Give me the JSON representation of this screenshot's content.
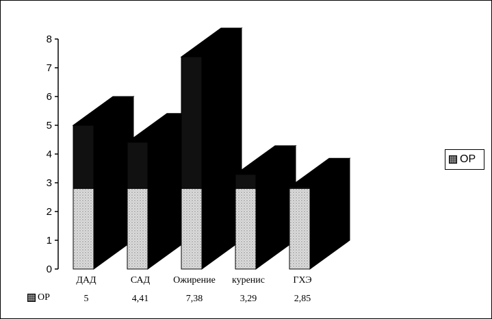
{
  "chart_data": {
    "type": "bar",
    "categories": [
      "ДАД",
      "САД",
      "Ожирение",
      "куренис",
      "ГХЭ"
    ],
    "series": [
      {
        "name": "ОР",
        "values": [
          5,
          4.41,
          7.38,
          3.29,
          2.85
        ]
      }
    ],
    "value_labels": [
      "5",
      "4,41",
      "7,38",
      "3,29",
      "2,85"
    ],
    "y_ticks": [
      "0",
      "1",
      "2",
      "3",
      "4",
      "5",
      "6",
      "7",
      "8"
    ],
    "ylim": [
      0,
      8
    ],
    "legend_position": "right",
    "data_table": true,
    "style": "3d-column"
  },
  "legend": {
    "label": "ОР"
  },
  "table": {
    "series_label": "ОР"
  },
  "colors": {
    "bar_face_top": "#111111",
    "bar_face_bottom": "#d8d8d8",
    "bar_side": "#000000",
    "background": "#ffffff"
  }
}
